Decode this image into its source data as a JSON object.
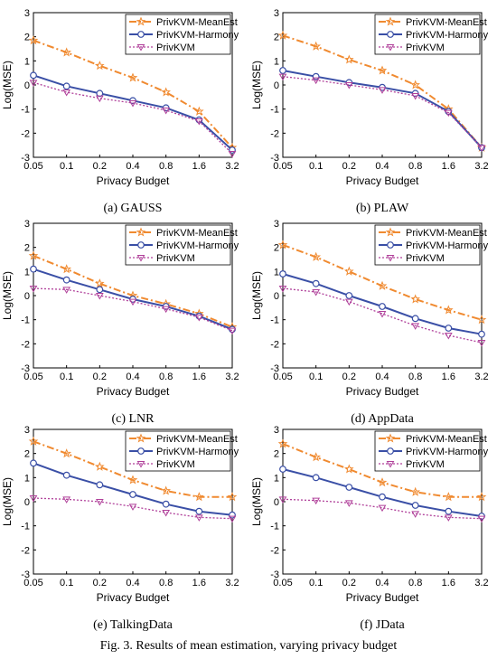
{
  "figure_caption": "Fig. 3.  Results of mean estimation, varying privacy budget",
  "colors": {
    "MeanEst": "#f08a30",
    "Harmony": "#3a4fa6",
    "PrivKVM": "#b0409a"
  },
  "chart_data": [
    {
      "type": "line",
      "subcaption": "(a) GAUSS",
      "x": [
        "0.05",
        "0.1",
        "0.2",
        "0.4",
        "0.8",
        "1.6",
        "3.2"
      ],
      "xlabel": "Privacy Budget",
      "ylabel": "Log(MSE)",
      "ylim": [
        -3,
        3
      ],
      "yticks": [
        "3",
        "2",
        "1",
        "0",
        "-1",
        "-2",
        "-3"
      ],
      "legend": "top-right",
      "series": [
        {
          "name": "PrivKVM-MeanEst",
          "values": [
            1.85,
            1.35,
            0.8,
            0.3,
            -0.3,
            -1.1,
            -2.6
          ]
        },
        {
          "name": "PrivKVM-Harmony",
          "values": [
            0.4,
            -0.05,
            -0.35,
            -0.65,
            -0.95,
            -1.45,
            -2.7
          ]
        },
        {
          "name": "PrivKVM",
          "values": [
            0.1,
            -0.3,
            -0.55,
            -0.75,
            -1.05,
            -1.5,
            -2.85
          ]
        }
      ]
    },
    {
      "type": "line",
      "subcaption": "(b) PLAW",
      "x": [
        "0.05",
        "0.1",
        "0.2",
        "0.4",
        "0.8",
        "1.6",
        "3.2"
      ],
      "xlabel": "Privacy Budget",
      "ylabel": "Log(MSE)",
      "ylim": [
        -3,
        3
      ],
      "yticks": [
        "3",
        "2",
        "1",
        "0",
        "-1",
        "-2",
        "-3"
      ],
      "legend": "top-right",
      "series": [
        {
          "name": "PrivKVM-MeanEst",
          "values": [
            2.05,
            1.6,
            1.05,
            0.6,
            0.0,
            -1.0,
            -2.6
          ]
        },
        {
          "name": "PrivKVM-Harmony",
          "values": [
            0.6,
            0.35,
            0.1,
            -0.1,
            -0.35,
            -1.1,
            -2.6
          ]
        },
        {
          "name": "PrivKVM",
          "values": [
            0.35,
            0.2,
            0.0,
            -0.2,
            -0.45,
            -1.15,
            -2.6
          ]
        }
      ]
    },
    {
      "type": "line",
      "subcaption": "(c) LNR",
      "x": [
        "0.05",
        "0.1",
        "0.2",
        "0.4",
        "0.8",
        "1.6",
        "3.2"
      ],
      "xlabel": "Privacy Budget",
      "ylabel": "Log(MSE)",
      "ylim": [
        -3,
        3
      ],
      "yticks": [
        "3",
        "2",
        "1",
        "0",
        "-1",
        "-2",
        "-3"
      ],
      "legend": "top-right",
      "series": [
        {
          "name": "PrivKVM-MeanEst",
          "values": [
            1.65,
            1.1,
            0.5,
            0.0,
            -0.35,
            -0.75,
            -1.3
          ]
        },
        {
          "name": "PrivKVM-Harmony",
          "values": [
            1.1,
            0.65,
            0.25,
            -0.15,
            -0.45,
            -0.85,
            -1.4
          ]
        },
        {
          "name": "PrivKVM",
          "values": [
            0.3,
            0.25,
            0.0,
            -0.25,
            -0.55,
            -0.9,
            -1.45
          ]
        }
      ]
    },
    {
      "type": "line",
      "subcaption": "(d) AppData",
      "x": [
        "0.05",
        "0.1",
        "0.2",
        "0.4",
        "0.8",
        "1.6",
        "3.2"
      ],
      "xlabel": "Privacy Budget",
      "ylabel": "Log(MSE)",
      "ylim": [
        -3,
        3
      ],
      "yticks": [
        "3",
        "2",
        "1",
        "0",
        "-1",
        "-2",
        "-3"
      ],
      "legend": "top-right",
      "series": [
        {
          "name": "PrivKVM-MeanEst",
          "values": [
            2.1,
            1.6,
            1.0,
            0.4,
            -0.15,
            -0.6,
            -1.0
          ]
        },
        {
          "name": "PrivKVM-Harmony",
          "values": [
            0.9,
            0.5,
            0.0,
            -0.45,
            -0.95,
            -1.35,
            -1.6
          ]
        },
        {
          "name": "PrivKVM",
          "values": [
            0.3,
            0.15,
            -0.25,
            -0.75,
            -1.25,
            -1.65,
            -1.95
          ]
        }
      ]
    },
    {
      "type": "line",
      "subcaption": "(e) TalkingData",
      "x": [
        "0.05",
        "0.1",
        "0.2",
        "0.4",
        "0.8",
        "1.6",
        "3.2"
      ],
      "xlabel": "Privacy Budget",
      "ylabel": "Log(MSE)",
      "ylim": [
        -3,
        3
      ],
      "yticks": [
        "3",
        "2",
        "1",
        "0",
        "-1",
        "-2",
        "-3"
      ],
      "legend": "top-right",
      "series": [
        {
          "name": "PrivKVM-MeanEst",
          "values": [
            2.5,
            2.0,
            1.45,
            0.9,
            0.45,
            0.2,
            0.2
          ]
        },
        {
          "name": "PrivKVM-Harmony",
          "values": [
            1.6,
            1.1,
            0.7,
            0.3,
            -0.1,
            -0.4,
            -0.55
          ]
        },
        {
          "name": "PrivKVM",
          "values": [
            0.15,
            0.1,
            0.0,
            -0.2,
            -0.45,
            -0.65,
            -0.7
          ]
        }
      ]
    },
    {
      "type": "line",
      "subcaption": "(f) JData",
      "x": [
        "0.05",
        "0.1",
        "0.2",
        "0.4",
        "0.8",
        "1.6",
        "3.2"
      ],
      "xlabel": "Privacy Budget",
      "ylabel": "Log(MSE)",
      "ylim": [
        -3,
        3
      ],
      "yticks": [
        "3",
        "2",
        "1",
        "0",
        "-1",
        "-2",
        "-3"
      ],
      "legend": "top-right",
      "series": [
        {
          "name": "PrivKVM-MeanEst",
          "values": [
            2.4,
            1.85,
            1.35,
            0.8,
            0.4,
            0.2,
            0.2
          ]
        },
        {
          "name": "PrivKVM-Harmony",
          "values": [
            1.35,
            1.0,
            0.6,
            0.2,
            -0.15,
            -0.4,
            -0.6
          ]
        },
        {
          "name": "PrivKVM",
          "values": [
            0.1,
            0.05,
            -0.05,
            -0.25,
            -0.5,
            -0.65,
            -0.7
          ]
        }
      ]
    }
  ]
}
